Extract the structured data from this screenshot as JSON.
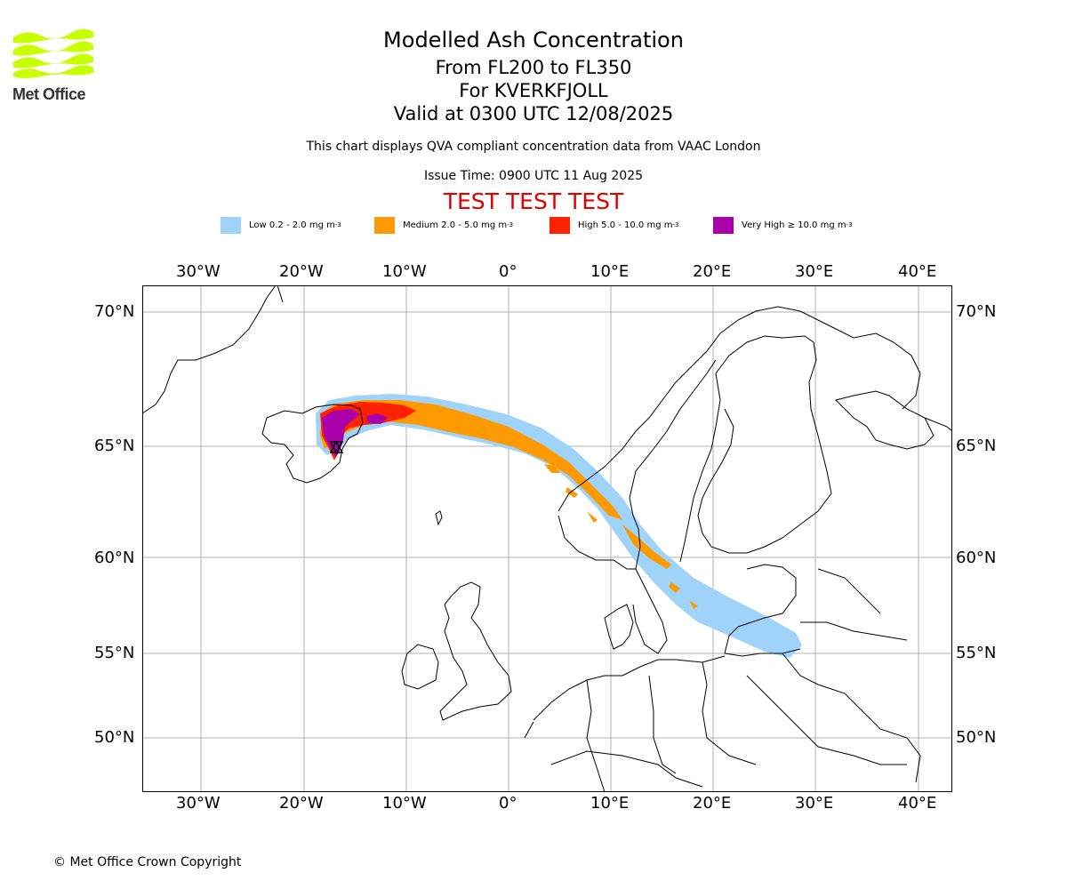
{
  "header": {
    "title": "Modelled Ash Concentration",
    "line2": "From FL200 to FL350",
    "line3": "For KVERKFJOLL",
    "line4": "Valid at 0300 UTC 12/08/2025",
    "note": "This chart displays QVA compliant concentration data from VAAC London",
    "issue_time": "Issue Time: 0900 UTC 11 Aug 2025",
    "test_banner": "TEST TEST TEST"
  },
  "logo": {
    "text": "Met Office",
    "color": "#c8ff00"
  },
  "legend": [
    {
      "label": "Low 0.2 - 2.0 mg m",
      "sup": "-3",
      "color": "#9fd3fa"
    },
    {
      "label": "Medium 2.0 - 5.0 mg m",
      "sup": "-3",
      "color": "#ff9900"
    },
    {
      "label": "High 5.0 - 10.0 mg m",
      "sup": "-3",
      "color": "#ff2200"
    },
    {
      "label": "Very High ≥ 10.0 mg m",
      "sup": "-3",
      "color": "#aa00aa"
    }
  ],
  "map": {
    "lon_labels": [
      "30°W",
      "20°W",
      "10°W",
      "0°",
      "10°E",
      "20°E",
      "30°E",
      "40°E"
    ],
    "lat_labels": [
      "70°N",
      "65°N",
      "60°N",
      "55°N",
      "50°N"
    ],
    "volcano_icon": "volcano-triangle-icon"
  },
  "footer": {
    "copyright": "© Met Office Crown Copyright"
  }
}
